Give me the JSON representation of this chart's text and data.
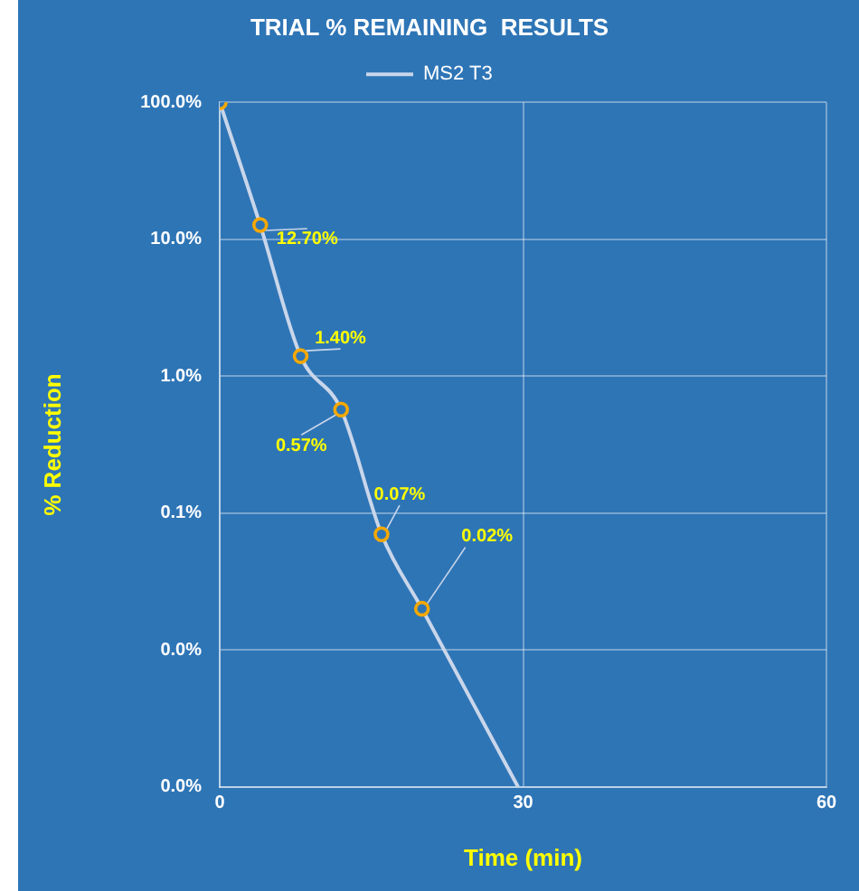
{
  "chart_data": {
    "type": "line",
    "title": "TRIAL % REMAINING  RESULTS",
    "xlabel": "Time (min)",
    "ylabel": "% Reduction",
    "log": "y",
    "grid": true,
    "legend": "top",
    "marker": "circle",
    "xlim": [
      0,
      60
    ],
    "xticks": [
      0,
      30,
      60
    ],
    "ylim": [
      0.001,
      100
    ],
    "yticks": [
      {
        "value": 100,
        "label": "100.0%"
      },
      {
        "value": 10,
        "label": "10.0%"
      },
      {
        "value": 1,
        "label": "1.0%"
      },
      {
        "value": 0.1,
        "label": "0.1%"
      },
      {
        "value": 0.01,
        "label": "0.0%"
      },
      {
        "value": 0.001,
        "label": "0.0%"
      }
    ],
    "series": [
      {
        "name": "MS2 T3",
        "color": "#c9d6ea",
        "colors": [
          "#f5a800",
          "#f5a800",
          "#f5a800",
          "#f5a800",
          "#f5a800",
          "#f5a800"
        ],
        "x": [
          0,
          4,
          8,
          12,
          16,
          20
        ],
        "values": [
          100,
          12.7,
          1.4,
          0.57,
          0.07,
          0.02
        ],
        "value_labels": [
          null,
          "12.70%",
          "1.40%",
          "0.57%",
          "0.07%",
          "0.02%"
        ]
      },
      {
        "type": "line",
        "marker": "none",
        "color": "#c9d6ea",
        "x": [
          20,
          29.5
        ],
        "values": [
          0.02,
          0.001
        ]
      }
    ]
  }
}
